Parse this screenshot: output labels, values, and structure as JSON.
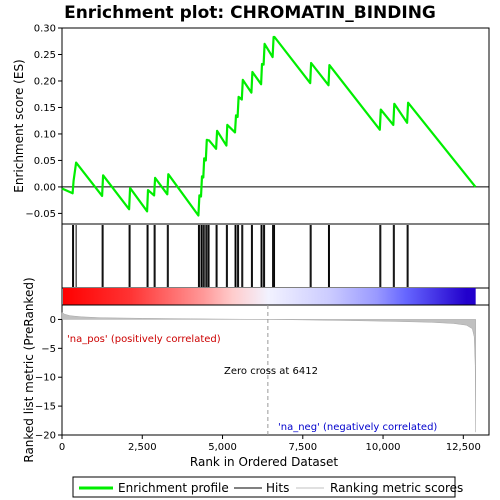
{
  "chart_data": {
    "type": "line",
    "title": "Enrichment plot: CHROMATIN_BINDING",
    "xlabel": "Rank in Ordered Dataset",
    "ylabel_top": "Enrichment score (ES)",
    "ylabel_bottom": "Ranked list metric (PreRanked)",
    "xlim": [
      0,
      13300
    ],
    "es_ylim": [
      -0.07,
      0.3
    ],
    "metric_ylim": [
      -20,
      2.5
    ],
    "x_ticks": [
      {
        "value": 0,
        "label": "0"
      },
      {
        "value": 2500,
        "label": "2,500"
      },
      {
        "value": 5000,
        "label": "5,000"
      },
      {
        "value": 7500,
        "label": "7,500"
      },
      {
        "value": 10000,
        "label": "10,000"
      },
      {
        "value": 12500,
        "label": "12,500"
      }
    ],
    "es_ticks": [
      {
        "value": -0.05,
        "label": "−0.05"
      },
      {
        "value": 0.0,
        "label": "0.00"
      },
      {
        "value": 0.05,
        "label": "0.05"
      },
      {
        "value": 0.1,
        "label": "0.10"
      },
      {
        "value": 0.15,
        "label": "0.15"
      },
      {
        "value": 0.2,
        "label": "0.20"
      },
      {
        "value": 0.25,
        "label": "0.25"
      },
      {
        "value": 0.3,
        "label": "0.30"
      }
    ],
    "metric_ticks": [
      {
        "value": 0,
        "label": "0"
      },
      {
        "value": -5,
        "label": "−5"
      },
      {
        "value": -10,
        "label": "−10"
      },
      {
        "value": -15,
        "label": "−15"
      },
      {
        "value": -20,
        "label": "−20"
      }
    ],
    "series": [
      {
        "name": "Enrichment profile",
        "color": "#00ee00",
        "x": [
          0,
          330,
          360,
          440,
          1250,
          1280,
          2090,
          2120,
          2650,
          2680,
          2870,
          2900,
          3280,
          3310,
          4250,
          4280,
          4330,
          4360,
          4400,
          4430,
          4480,
          4510,
          4550,
          4580,
          4800,
          4830,
          5120,
          5150,
          5390,
          5420,
          5470,
          5500,
          5600,
          5630,
          5900,
          5930,
          6200,
          6230,
          6280,
          6310,
          6560,
          6590,
          6620,
          7730,
          7760,
          8300,
          8330,
          9900,
          9930,
          10320,
          10350,
          10750,
          10780,
          12880
        ],
        "y": [
          -0.003,
          -0.012,
          0.012,
          0.046,
          -0.017,
          0.022,
          -0.042,
          -0.002,
          -0.046,
          -0.006,
          -0.016,
          0.017,
          -0.014,
          0.024,
          -0.054,
          -0.016,
          -0.018,
          0.02,
          0.018,
          0.054,
          0.05,
          0.089,
          0.088,
          0.088,
          0.072,
          0.106,
          0.078,
          0.117,
          0.103,
          0.135,
          0.132,
          0.17,
          0.165,
          0.202,
          0.178,
          0.217,
          0.194,
          0.232,
          0.231,
          0.27,
          0.245,
          0.283,
          0.283,
          0.196,
          0.234,
          0.192,
          0.23,
          0.108,
          0.146,
          0.117,
          0.157,
          0.121,
          0.159,
          0.0
        ]
      }
    ],
    "hits": [
      330,
      360,
      440,
      1250,
      1280,
      2090,
      2120,
      2650,
      2680,
      2870,
      2900,
      3280,
      3310,
      4250,
      4280,
      4330,
      4360,
      4400,
      4430,
      4480,
      4510,
      4550,
      4580,
      4800,
      4830,
      5120,
      5150,
      5390,
      5420,
      5470,
      5500,
      5600,
      5630,
      5900,
      5930,
      6200,
      6230,
      6280,
      6310,
      6560,
      6590,
      6620,
      7730,
      7760,
      8300,
      8330,
      9900,
      9930,
      10320,
      10350,
      10750,
      10780
    ],
    "ranking_metric": {
      "name": "Ranking metric scores",
      "color": "#c0c0c0",
      "x": [
        0,
        80,
        250,
        600,
        1200,
        2500,
        4000,
        5500,
        6412,
        7500,
        9000,
        10500,
        11500,
        12200,
        12600,
        12780,
        12840,
        12870,
        12885
      ],
      "y": [
        1.2,
        0.9,
        0.65,
        0.45,
        0.3,
        0.2,
        0.12,
        0.05,
        0.0,
        -0.08,
        -0.2,
        -0.35,
        -0.5,
        -0.7,
        -1.0,
        -1.6,
        -3.0,
        -8.0,
        -19.5
      ]
    },
    "zero_cross": 6412,
    "annotations": {
      "zero_cross_label": "Zero cross at 6412",
      "pos_label": "'na_pos' (positively correlated)",
      "neg_label": "'na_neg' (negatively correlated)",
      "pos_color": "#cc0000",
      "neg_color": "#0000cc"
    },
    "color_bar": {
      "stops": [
        {
          "x": 0,
          "color": "#ff0000"
        },
        {
          "x": 2100,
          "color": "#ff3333"
        },
        {
          "x": 4400,
          "color": "#ff9999"
        },
        {
          "x": 5300,
          "color": "#ffcccc"
        },
        {
          "x": 6412,
          "color": "#f2f2ff"
        },
        {
          "x": 8300,
          "color": "#ccccff"
        },
        {
          "x": 9800,
          "color": "#9999ff"
        },
        {
          "x": 10700,
          "color": "#6666ff"
        },
        {
          "x": 12600,
          "color": "#2200cc"
        },
        {
          "x": 12885,
          "color": "#2200cc"
        }
      ]
    },
    "legend": [
      {
        "label": "Enrichment profile",
        "color": "#00ee00",
        "kind": "thick-line"
      },
      {
        "label": "Hits",
        "color": "#000000",
        "kind": "line"
      },
      {
        "label": "Ranking metric scores",
        "color": "#c0c0c0",
        "kind": "line"
      }
    ],
    "legend_position": "bottom",
    "grid": false
  }
}
